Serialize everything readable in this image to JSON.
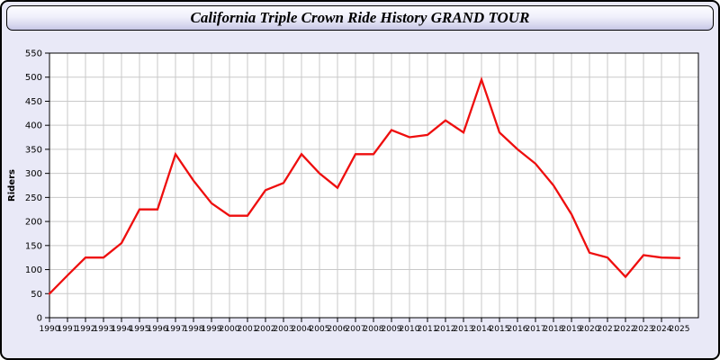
{
  "window": {
    "title": "California Triple Crown Ride History GRAND TOUR"
  },
  "chart_data": {
    "type": "line",
    "title": "California Triple Crown Ride History GRAND TOUR",
    "xlabel": "",
    "ylabel": "Riders",
    "ylim": [
      0,
      550
    ],
    "yticks": [
      0,
      50,
      100,
      150,
      200,
      250,
      300,
      350,
      400,
      450,
      500,
      550
    ],
    "grid": true,
    "legend_position": "none",
    "line_color": "#ee0e0e",
    "plot_bg": "#ffffff",
    "grid_color": "#c9c9c9",
    "frame_bg": "#e9e9f7",
    "x": [
      1990,
      1991,
      1992,
      1993,
      1994,
      1995,
      1996,
      1997,
      1998,
      1999,
      2000,
      2001,
      2002,
      2003,
      2004,
      2005,
      2006,
      2007,
      2008,
      2009,
      2010,
      2011,
      2012,
      2013,
      2014,
      2015,
      2016,
      2017,
      2018,
      2019,
      2020,
      2021,
      2022,
      2023,
      2024,
      2025
    ],
    "values": [
      50,
      88,
      125,
      125,
      155,
      225,
      225,
      340,
      285,
      238,
      212,
      212,
      265,
      280,
      340,
      300,
      270,
      340,
      340,
      390,
      375,
      380,
      410,
      385,
      495,
      385,
      350,
      320,
      275,
      215,
      135,
      125,
      85,
      130,
      125,
      124
    ]
  }
}
